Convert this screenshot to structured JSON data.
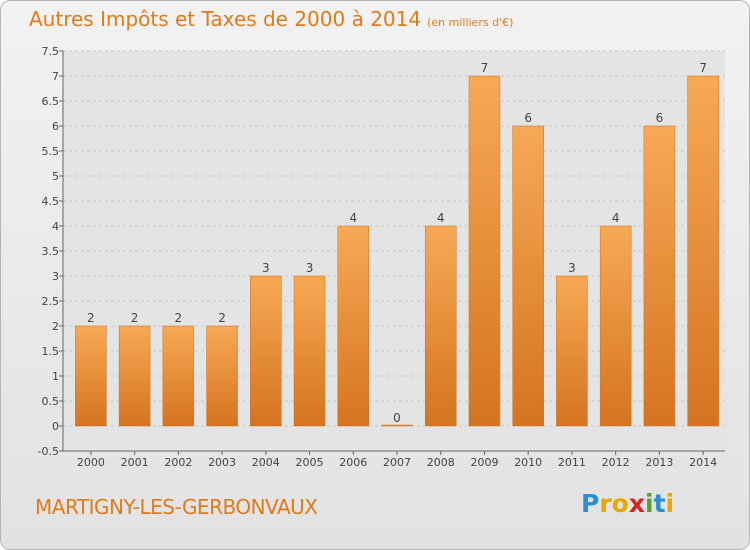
{
  "title": "Autres Impôts et Taxes de 2000 à 2014",
  "unit": "(en milliers d'€)",
  "commune": "MARTIGNY-LES-GERBONVAUX",
  "brand": {
    "letters": [
      "P",
      "r",
      "o",
      "x",
      "i",
      "t",
      "i"
    ],
    "colors": [
      "#2a8fd6",
      "#e8a800",
      "#e8a800",
      "#d92323",
      "#5aa12a",
      "#2a8fd6",
      "#e8a800"
    ]
  },
  "colors": {
    "bar": "#f0993e",
    "bar_edge": "#d07020",
    "accent": "#e07b1a"
  },
  "chart_data": {
    "type": "bar",
    "categories": [
      "2000",
      "2001",
      "2002",
      "2003",
      "2004",
      "2005",
      "2006",
      "2007",
      "2008",
      "2009",
      "2010",
      "2011",
      "2012",
      "2013",
      "2014"
    ],
    "values": [
      2,
      2,
      2,
      2,
      3,
      3,
      4,
      0,
      4,
      7,
      6,
      3,
      4,
      6,
      7
    ],
    "data_labels": [
      "2",
      "2",
      "2",
      "2",
      "3",
      "3",
      "4",
      "0",
      "4",
      "7",
      "6",
      "3",
      "4",
      "6",
      "7"
    ],
    "y_ticks": [
      "-0.5",
      "0",
      "0.5",
      "1",
      "1.5",
      "2",
      "2.5",
      "3",
      "3.5",
      "4",
      "4.5",
      "5",
      "5.5",
      "6",
      "6.5",
      "7",
      "7.5"
    ],
    "ylim": [
      -0.5,
      7.5
    ],
    "grid": true
  }
}
